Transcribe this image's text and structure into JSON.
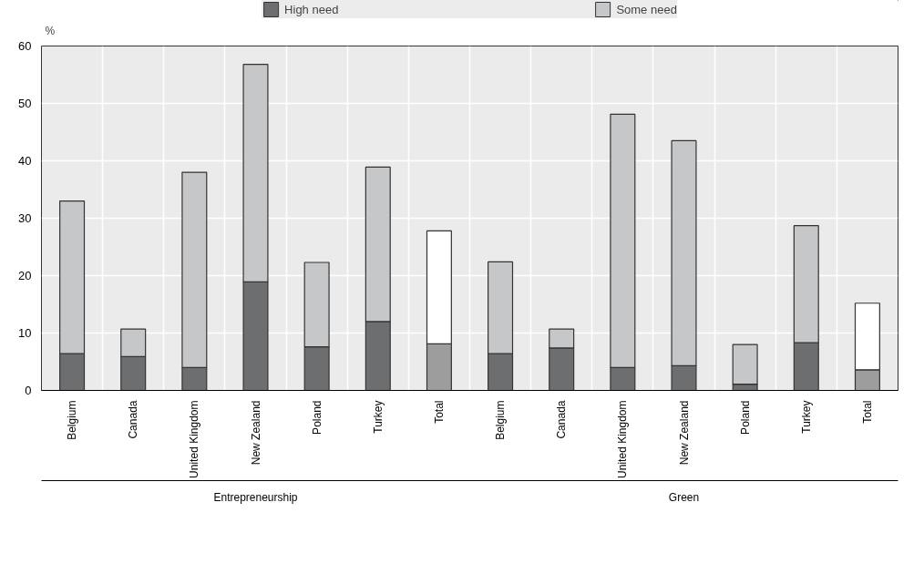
{
  "chart_data": {
    "type": "bar",
    "stacked": true,
    "ylabel": "%",
    "categories": [
      "Belgium",
      "Canada",
      "United Kingdom",
      "New Zealand",
      "Poland",
      "Turkey",
      "Total",
      "Belgium",
      "Canada",
      "United Kingdom",
      "New Zealand",
      "Poland",
      "Turkey",
      "Total"
    ],
    "series": [
      {
        "name": "High need",
        "color": "#6d6e70",
        "colors": [
          "#6d6e70",
          "#6d6e70",
          "#6d6e70",
          "#6d6e70",
          "#6d6e70",
          "#6d6e70",
          "#9d9d9d",
          "#6d6e70",
          "#6d6e70",
          "#6d6e70",
          "#6d6e70",
          "#6d6e70",
          "#6d6e70",
          "#9d9d9d"
        ],
        "values": [
          6.4,
          5.9,
          4.0,
          18.9,
          7.6,
          12.0,
          8.1,
          6.4,
          7.4,
          4.0,
          4.3,
          1.1,
          8.3,
          3.6
        ]
      },
      {
        "name": "Some need",
        "color": "#c6c7c9",
        "colors": [
          "#c6c7c9",
          "#c6c7c9",
          "#c6c7c9",
          "#c6c7c9",
          "#c6c7c9",
          "#c6c7c9",
          "#ffffff",
          "#c6c7c9",
          "#c6c7c9",
          "#c6c7c9",
          "#c6c7c9",
          "#c6c7c9",
          "#c6c7c9",
          "#ffffff"
        ],
        "values": [
          26.6,
          4.8,
          34.0,
          37.9,
          14.7,
          26.9,
          19.7,
          16.0,
          3.3,
          44.1,
          39.2,
          6.9,
          20.4,
          11.6
        ]
      }
    ],
    "ylim": [
      0,
      60
    ],
    "yticks": [
      0,
      10,
      20,
      30,
      40,
      50,
      60
    ],
    "grid": true,
    "legend": "top",
    "annotations": [
      "Entrepreneurship",
      "Green"
    ]
  }
}
